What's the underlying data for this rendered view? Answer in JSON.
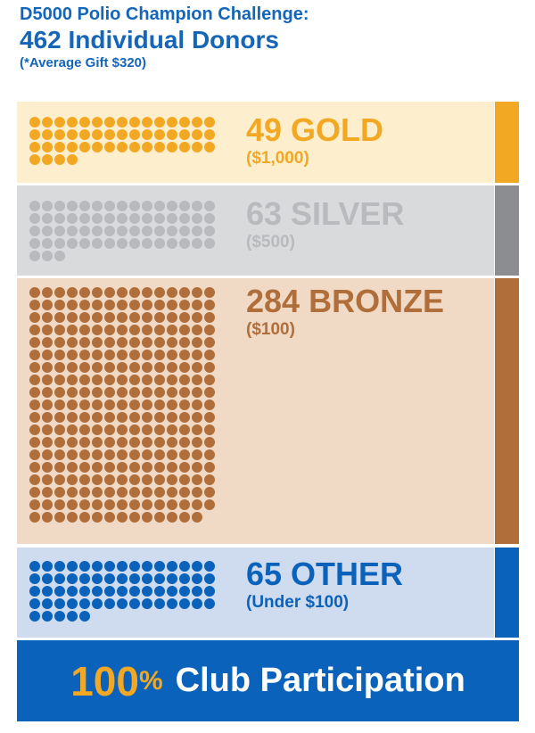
{
  "header": {
    "line1": "D5000 Polio Champion Challenge:",
    "line2": "462 Individual Donors",
    "line3": "(*Average Gift $320)"
  },
  "chart_data": {
    "type": "pictograph",
    "title": "D5000 Polio Champion Challenge:",
    "total_donors": 462,
    "average_gift": "$320",
    "tiers": [
      {
        "name": "GOLD",
        "count": 49,
        "amount": "$1,000",
        "count_label": "49 GOLD",
        "amount_label": "($1,000)",
        "color": "#f3a824",
        "background": "#fdeecd",
        "stripe": "#f3a824"
      },
      {
        "name": "SILVER",
        "count": 63,
        "amount": "$500",
        "count_label": "63 SILVER",
        "amount_label": "($500)",
        "color": "#b9babd",
        "background": "#d9dadc",
        "stripe": "#8c8d90"
      },
      {
        "name": "BRONZE",
        "count": 284,
        "amount": "$100",
        "count_label": "284 BRONZE",
        "amount_label": "($100)",
        "color": "#b06e3a",
        "background": "#f1dac5",
        "stripe": "#b06e3a"
      },
      {
        "name": "OTHER",
        "count": 65,
        "amount": "Under $100",
        "count_label": "65 OTHER",
        "amount_label": "(Under $100)",
        "color": "#0a62bb",
        "background": "#cfdcef",
        "stripe": "#0a62bb"
      }
    ]
  },
  "footer": {
    "percent_value": "100",
    "percent_sign": "%",
    "text": "Club Participation"
  }
}
